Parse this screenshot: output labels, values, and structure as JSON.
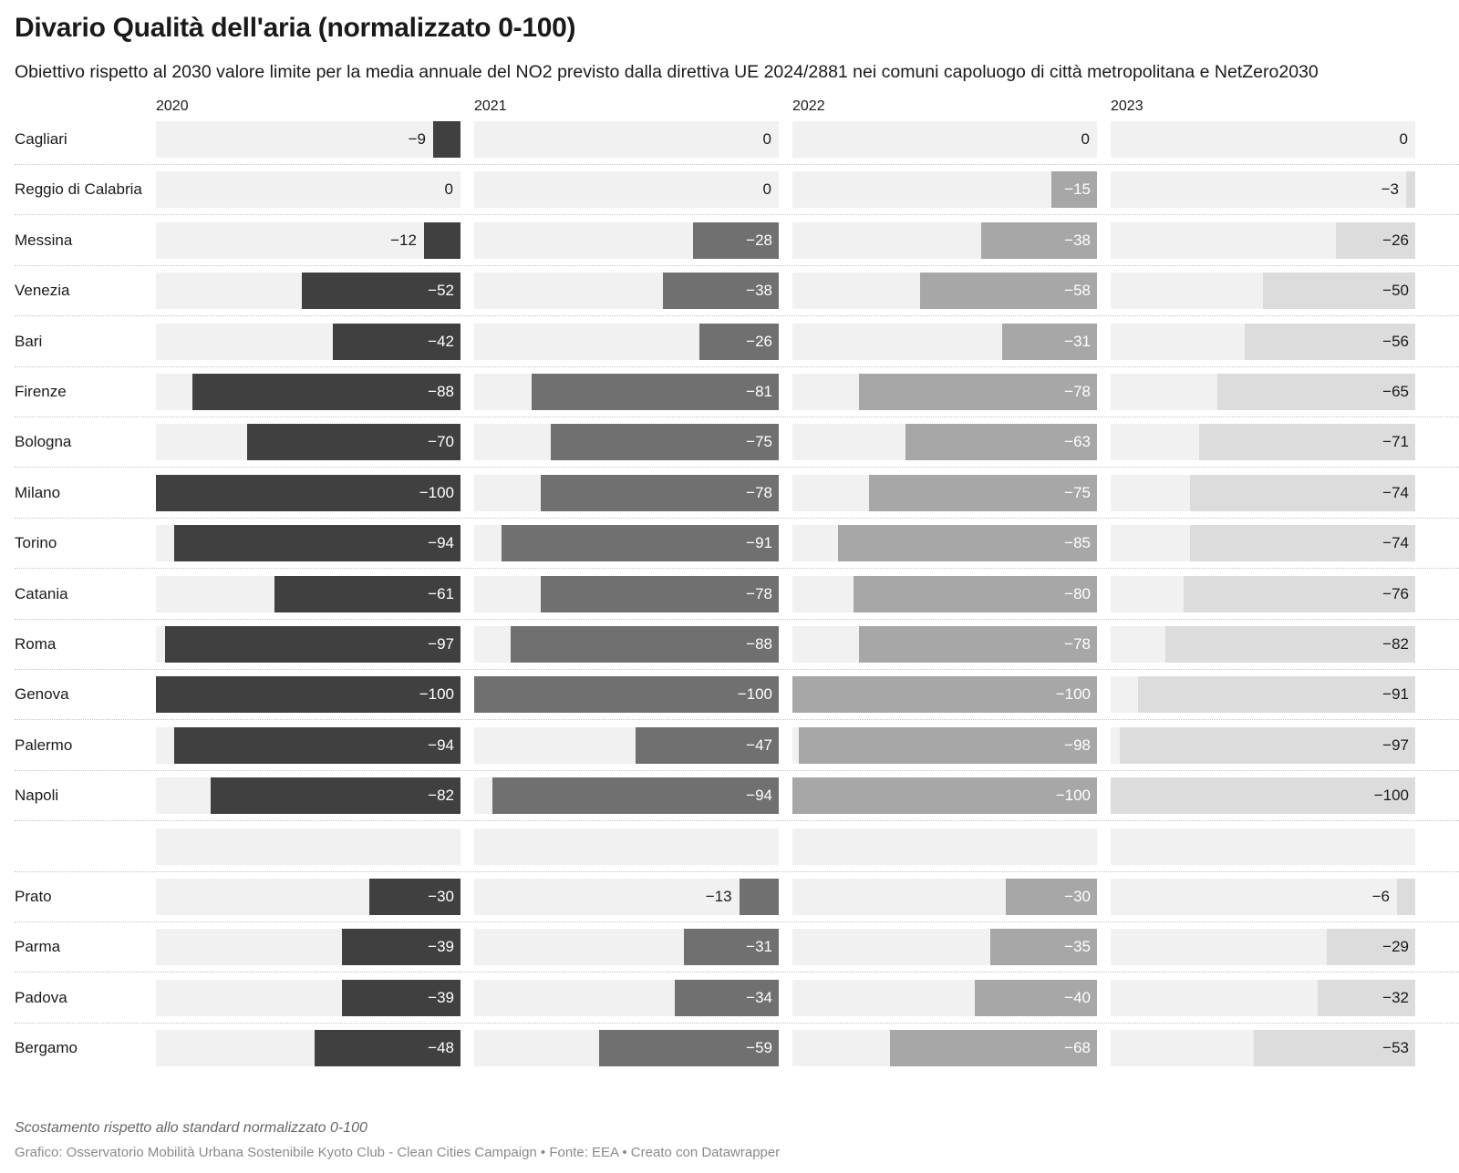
{
  "header": {
    "title": "Divario Qualità dell'aria (normalizzato 0-100)",
    "subtitle": "Obiettivo rispetto al 2030 valore limite per la media annuale del NO2 previsto dalla direttiva UE 2024/2881 nei comuni capoluogo di città metropolitana e NetZero2030"
  },
  "footer": {
    "note": "Scostamento rispetto allo standard normalizzato 0-100",
    "credits": "Grafico: Osservatorio Mobilità Urbana Sostenibile Kyoto Club - Clean Cities Campaign • Fonte: EEA • Creato con Datawrapper"
  },
  "chart_data": {
    "type": "bar",
    "orientation": "horizontal",
    "grid": false,
    "xlim": [
      -100,
      0
    ],
    "colors": {
      "track": "#f1f1f1",
      "2020": "#404040",
      "2021": "#707070",
      "2022": "#a7a7a7",
      "2023": "#dcdcdc"
    },
    "columns": [
      "2020",
      "2021",
      "2022",
      "2023"
    ],
    "categories": [
      "Cagliari",
      "Reggio di Calabria",
      "Messina",
      "Venezia",
      "Bari",
      "Firenze",
      "Bologna",
      "Milano",
      "Torino",
      "Catania",
      "Roma",
      "Genova",
      "Palermo",
      "Napoli",
      "",
      "Prato",
      "Parma",
      "Padova",
      "Bergamo"
    ],
    "series": [
      {
        "name": "2020",
        "values": [
          -9,
          0,
          -12,
          -52,
          -42,
          -88,
          -70,
          -100,
          -94,
          -61,
          -97,
          -100,
          -94,
          -82,
          null,
          -30,
          -39,
          -39,
          -48
        ]
      },
      {
        "name": "2021",
        "values": [
          0,
          0,
          -28,
          -38,
          -26,
          -81,
          -75,
          -78,
          -91,
          -78,
          -88,
          -100,
          -47,
          -94,
          null,
          -13,
          -31,
          -34,
          -59
        ]
      },
      {
        "name": "2022",
        "values": [
          0,
          -15,
          -38,
          -58,
          -31,
          -78,
          -63,
          -75,
          -85,
          -80,
          -78,
          -100,
          -98,
          -100,
          null,
          -30,
          -35,
          -40,
          -68
        ]
      },
      {
        "name": "2023",
        "values": [
          0,
          -3,
          -26,
          -50,
          -56,
          -65,
          -71,
          -74,
          -74,
          -76,
          -82,
          -91,
          -97,
          -100,
          null,
          -6,
          -29,
          -32,
          -53
        ]
      }
    ]
  }
}
